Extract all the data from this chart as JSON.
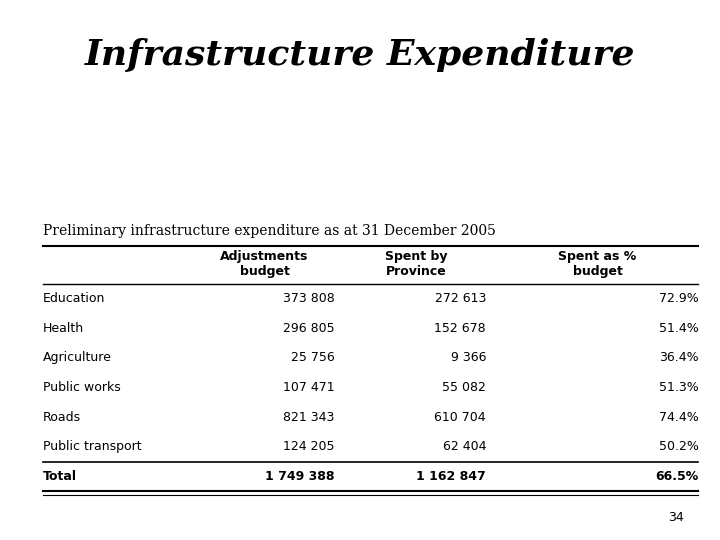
{
  "title": "Infrastructure Expenditure",
  "subtitle": "Preliminary infrastructure expenditure as at 31 December 2005",
  "col_headers": [
    "",
    "Adjustments\nbudget",
    "Spent by\nProvince",
    "Spent as %\nbudget"
  ],
  "rows": [
    [
      "Education",
      "373 808",
      "272 613",
      "72.9%"
    ],
    [
      "Health",
      "296 805",
      "152 678",
      "51.4%"
    ],
    [
      "Agriculture",
      "25 756",
      "9 366",
      "36.4%"
    ],
    [
      "Public works",
      "107 471",
      "55 082",
      "51.3%"
    ],
    [
      "Roads",
      "821 343",
      "610 704",
      "74.4%"
    ],
    [
      "Public transport",
      "124 205",
      "62 404",
      "50.2%"
    ]
  ],
  "total_row": [
    "Total",
    "1 749 388",
    "1 162 847",
    "66.5%"
  ],
  "page_number": "34",
  "bg_color": "#ffffff",
  "title_fontsize": 26,
  "subtitle_fontsize": 10,
  "header_fontsize": 9,
  "row_fontsize": 9,
  "total_fontsize": 9
}
